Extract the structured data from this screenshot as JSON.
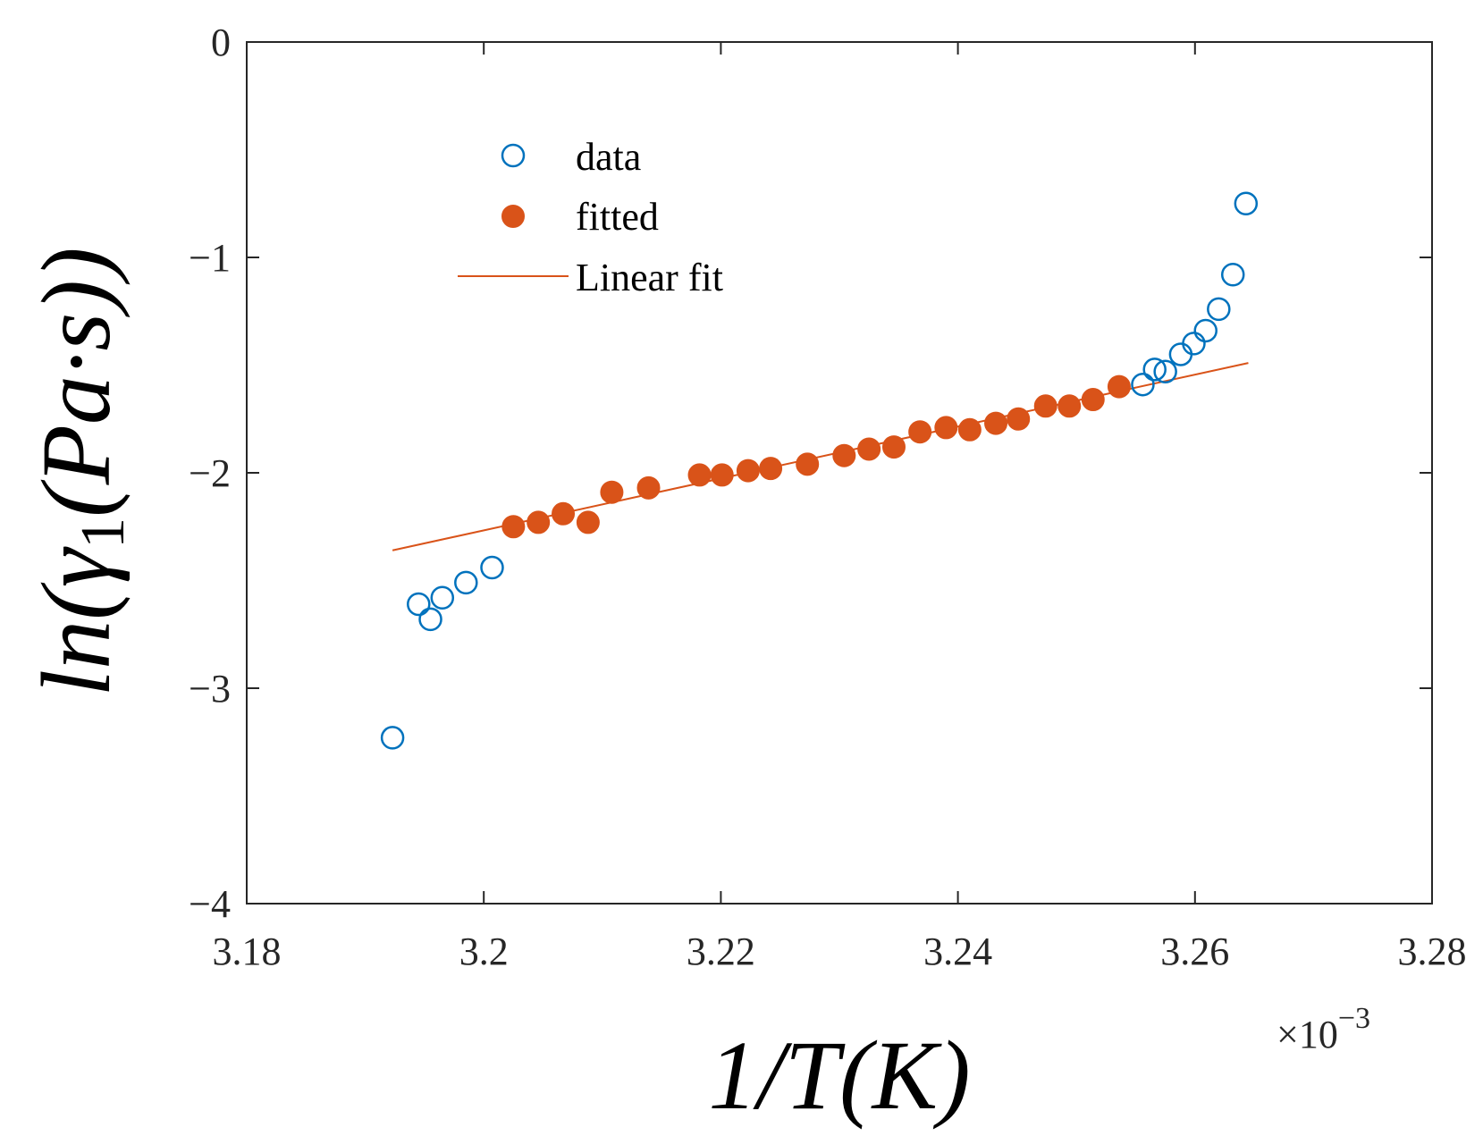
{
  "chart_data": {
    "type": "scatter",
    "xlabel": "1/T(K)",
    "ylabel": "ln(γ1(Pa·s))",
    "ylabel_parts": {
      "prefix": "ln(γ",
      "subscript": "1",
      "suffix": "(Pa·s))"
    },
    "x_multiplier": "×10",
    "x_multiplier_exponent": "−3",
    "xlim": [
      3.18,
      3.28
    ],
    "ylim": [
      -4,
      0
    ],
    "xticks": [
      3.18,
      3.2,
      3.22,
      3.24,
      3.26,
      3.28
    ],
    "xtick_labels": [
      "3.18",
      "3.2",
      "3.22",
      "3.24",
      "3.26",
      "3.28"
    ],
    "yticks": [
      0,
      -1,
      -2,
      -3,
      -4
    ],
    "ytick_labels": [
      "0",
      "−1",
      "−2",
      "−3",
      "−4"
    ],
    "grid": false,
    "legend_position": "top-left",
    "series": [
      {
        "name": "data",
        "style": "open-circle",
        "color": "#0072BD",
        "x": [
          3.1923,
          3.1945,
          3.1955,
          3.1965,
          3.1985,
          3.2007,
          3.2556,
          3.2566,
          3.2575,
          3.2588,
          3.2599,
          3.2609,
          3.262,
          3.2632,
          3.2643
        ],
        "y": [
          -3.23,
          -2.61,
          -2.68,
          -2.58,
          -2.51,
          -2.44,
          -1.59,
          -1.52,
          -1.53,
          -1.45,
          -1.4,
          -1.34,
          -1.24,
          -1.08,
          -0.75
        ]
      },
      {
        "name": "fitted",
        "style": "filled-circle",
        "color": "#D95319",
        "x": [
          3.2025,
          3.2046,
          3.2067,
          3.2088,
          3.2108,
          3.2139,
          3.2182,
          3.2201,
          3.2223,
          3.2242,
          3.2273,
          3.2304,
          3.2325,
          3.2346,
          3.2368,
          3.239,
          3.241,
          3.2432,
          3.2451,
          3.2474,
          3.2494,
          3.2514,
          3.2536
        ],
        "y": [
          -2.25,
          -2.23,
          -2.19,
          -2.23,
          -2.09,
          -2.07,
          -2.01,
          -2.01,
          -1.99,
          -1.98,
          -1.96,
          -1.92,
          -1.89,
          -1.88,
          -1.81,
          -1.79,
          -1.8,
          -1.77,
          -1.75,
          -1.69,
          -1.69,
          -1.66,
          -1.6
        ]
      },
      {
        "name": "Linear fit",
        "style": "line",
        "color": "#D95319",
        "x": [
          3.1923,
          3.2645
        ],
        "y": [
          -2.36,
          -1.49
        ]
      }
    ],
    "legend": [
      "data",
      "fitted",
      "Linear fit"
    ]
  }
}
